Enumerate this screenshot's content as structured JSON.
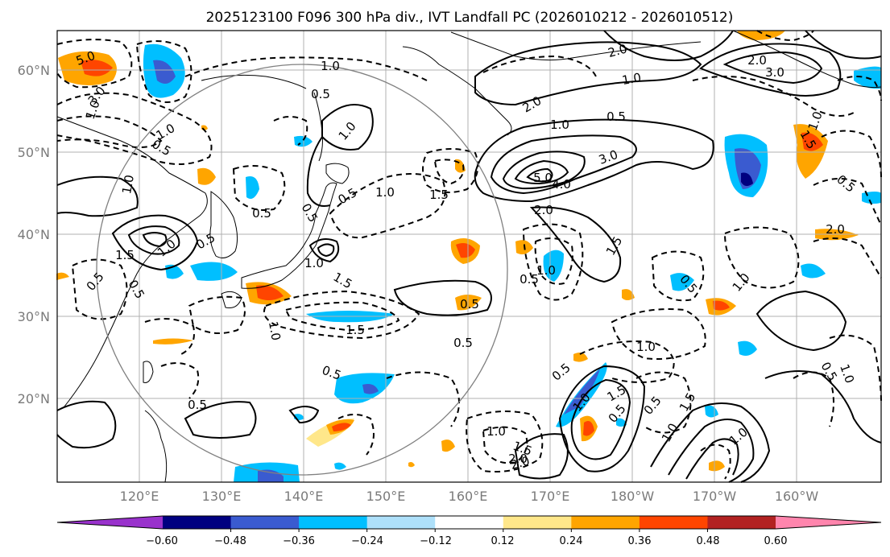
{
  "title": "2025123100 F096 300 hPa div., IVT Landfall PC (2026010212 - 2026010512)",
  "axes": {
    "lat_ticks": [
      "60°N",
      "50°N",
      "40°N",
      "30°N",
      "20°N"
    ],
    "lon_ticks": [
      "120°E",
      "130°E",
      "140°E",
      "150°E",
      "160°E",
      "170°E",
      "180°W",
      "170°W",
      "160°W"
    ],
    "lat_range": [
      10,
      65
    ],
    "lon_range": [
      110,
      210
    ]
  },
  "colorbar": {
    "tick_labels": [
      "−0.60",
      "−0.48",
      "−0.36",
      "−0.24",
      "−0.12",
      "0.12",
      "0.24",
      "0.36",
      "0.48",
      "0.60"
    ],
    "colors": [
      "#9932cc",
      "#000080",
      "#3a5bd0",
      "#00bfff",
      "#aee0fa",
      "#ffffff",
      "#ffe78a",
      "#ffa500",
      "#ff4500",
      "#b22222",
      "#ff85ad"
    ]
  },
  "contour_labels": [
    "5.0",
    "1.0",
    "2.0",
    "3.0",
    "0.5",
    "1.0",
    "1.0",
    "0.5",
    "1.0",
    "2.0",
    "1.0",
    "0.5",
    "1.0",
    "5.0",
    "4.0",
    "3.0",
    "2.0",
    "1.5",
    "1.0",
    "0.5",
    "1.5",
    "0.5",
    "1.0",
    "1.5",
    "0.5",
    "1.0",
    "0.5",
    "1.5",
    "0.5",
    "0.5",
    "0.5",
    "1.0",
    "0.5",
    "0.5",
    "0.5",
    "1.0",
    "1.5",
    "1.0",
    "1.5",
    "0.5",
    "2.0",
    "1.5",
    "1.0",
    "1.5",
    "1.0",
    "1.0",
    "0.5",
    "0.5",
    "0.5",
    "0.5",
    "1.0",
    "0.5",
    "1.0",
    "0.5",
    "1.0",
    "1.5",
    "1.0",
    "2.0",
    "3.0",
    "2.0",
    "2.0",
    "1.0"
  ],
  "colors": {
    "frame": "#000000",
    "grid": "#b0b0b0",
    "coast": "#000000",
    "circle": "#808080"
  }
}
